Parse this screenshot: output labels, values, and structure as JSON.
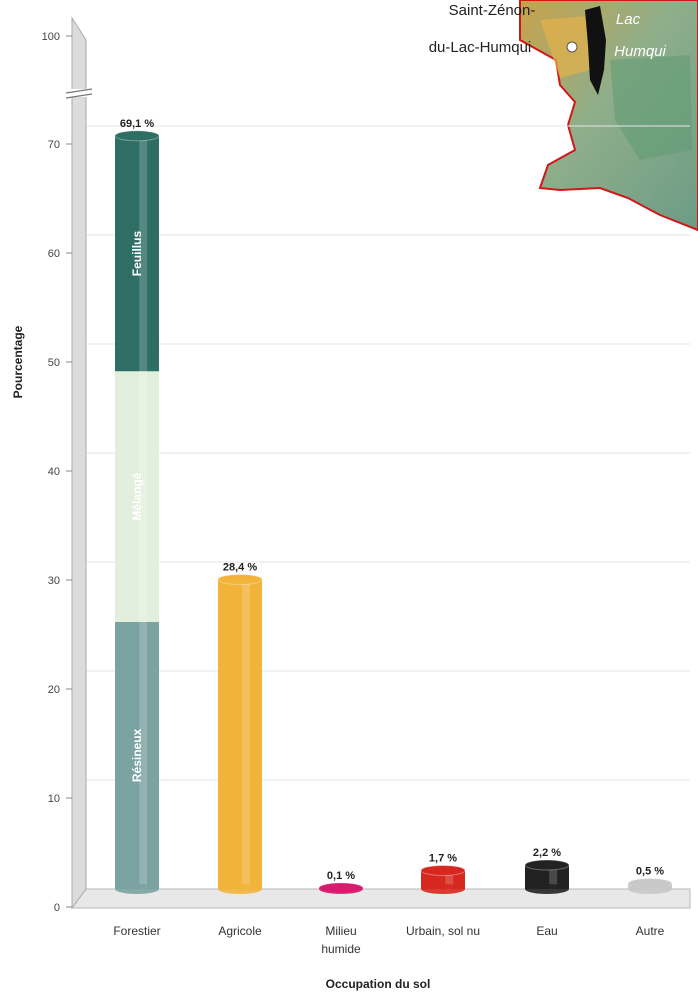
{
  "chart_data": {
    "type": "bar",
    "xlabel": "Occupation du sol",
    "ylabel": "Pourcentage",
    "y_ticks": [
      0,
      10,
      20,
      30,
      40,
      50,
      60,
      70,
      100
    ],
    "ylim": [
      0,
      100
    ],
    "axis_break": "between 70 and 100",
    "grid": true,
    "categories": [
      {
        "key": "forestier",
        "lines": [
          "Forestier"
        ],
        "value": 69.1,
        "label": "69,1 %",
        "color": "#6f9c9a"
      },
      {
        "key": "agricole",
        "lines": [
          "Agricole"
        ],
        "value": 28.4,
        "label": "28,4 %",
        "color": "#f2b33a"
      },
      {
        "key": "milieu-humide",
        "lines": [
          "Milieu",
          "humide"
        ],
        "value": 0.1,
        "label": "0,1 %",
        "color": "#d81b6e"
      },
      {
        "key": "urbain",
        "lines": [
          "Urbain, sol nu"
        ],
        "value": 1.7,
        "label": "1,7 %",
        "color": "#d7281f"
      },
      {
        "key": "eau",
        "lines": [
          "Eau"
        ],
        "value": 2.2,
        "label": "2,2 %",
        "color": "#222222"
      },
      {
        "key": "autre",
        "lines": [
          "Autre"
        ],
        "value": 0.5,
        "label": "0,5 %",
        "color": "#c8c8c8"
      }
    ],
    "stacked_forestier": [
      {
        "name": "Résineux",
        "from": 0,
        "to": 24.5,
        "color": "#7aa3a1"
      },
      {
        "name": "Mélangé",
        "from": 24.5,
        "to": 47.5,
        "color": "#e2efdc"
      },
      {
        "name": "Feuillus",
        "from": 47.5,
        "to": 69.1,
        "color": "#2f6e64"
      }
    ]
  },
  "map": {
    "town_line1": "Saint-Zénon-",
    "town_line2": "du-Lac-Humqui",
    "lake_line1": "Lac",
    "lake_line2": "Humqui"
  }
}
